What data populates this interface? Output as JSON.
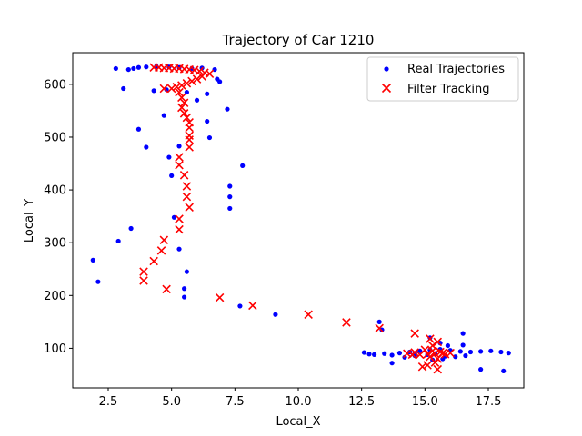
{
  "chart_data": {
    "type": "scatter",
    "title": "Trajectory of Car 1210",
    "xlabel": "Local_X",
    "ylabel": "Local_Y",
    "xlim": [
      1.1,
      18.9
    ],
    "ylim": [
      25,
      660
    ],
    "xticks": [
      2.5,
      5.0,
      7.5,
      10.0,
      12.5,
      15.0,
      17.5
    ],
    "xtick_labels": [
      "2.5",
      "5.0",
      "7.5",
      "10.0",
      "12.5",
      "15.0",
      "17.5"
    ],
    "yticks": [
      100,
      200,
      300,
      400,
      500,
      600
    ],
    "ytick_labels": [
      "100",
      "200",
      "300",
      "400",
      "500",
      "600"
    ],
    "grid": false,
    "legend_position": "top-right",
    "series": [
      {
        "name": "Real Trajectories",
        "marker": "dot",
        "color": "#0000ff",
        "points": [
          [
            2.8,
            630
          ],
          [
            3.3,
            628
          ],
          [
            3.5,
            630
          ],
          [
            3.7,
            632
          ],
          [
            4.0,
            633
          ],
          [
            4.4,
            634
          ],
          [
            4.9,
            633
          ],
          [
            5.3,
            632
          ],
          [
            5.8,
            630
          ],
          [
            6.2,
            631
          ],
          [
            6.7,
            628
          ],
          [
            3.1,
            592
          ],
          [
            4.3,
            588
          ],
          [
            4.8,
            590
          ],
          [
            5.6,
            585
          ],
          [
            6.4,
            582
          ],
          [
            6.8,
            610
          ],
          [
            6.9,
            605
          ],
          [
            6.0,
            570
          ],
          [
            7.2,
            553
          ],
          [
            3.7,
            515
          ],
          [
            6.4,
            530
          ],
          [
            4.7,
            541
          ],
          [
            6.5,
            499
          ],
          [
            4.0,
            481
          ],
          [
            5.3,
            483
          ],
          [
            4.9,
            462
          ],
          [
            7.8,
            446
          ],
          [
            5.0,
            427
          ],
          [
            7.3,
            407
          ],
          [
            7.3,
            387
          ],
          [
            7.3,
            365
          ],
          [
            3.4,
            327
          ],
          [
            5.1,
            348
          ],
          [
            2.9,
            303
          ],
          [
            5.3,
            288
          ],
          [
            1.9,
            267
          ],
          [
            5.6,
            245
          ],
          [
            2.1,
            226
          ],
          [
            5.5,
            213
          ],
          [
            5.5,
            197
          ],
          [
            7.7,
            180
          ],
          [
            9.1,
            164
          ],
          [
            13.2,
            150
          ],
          [
            13.3,
            135
          ],
          [
            16.5,
            128
          ],
          [
            12.6,
            92
          ],
          [
            12.8,
            89
          ],
          [
            13.0,
            88
          ],
          [
            13.4,
            90
          ],
          [
            13.7,
            87
          ],
          [
            14.0,
            91
          ],
          [
            14.4,
            93
          ],
          [
            14.8,
            95
          ],
          [
            15.2,
            97
          ],
          [
            15.6,
            98
          ],
          [
            16.0,
            96
          ],
          [
            16.4,
            94
          ],
          [
            16.8,
            93
          ],
          [
            17.2,
            94
          ],
          [
            17.6,
            95
          ],
          [
            18.0,
            93
          ],
          [
            18.3,
            91
          ],
          [
            14.2,
            83
          ],
          [
            14.6,
            86
          ],
          [
            15.1,
            88
          ],
          [
            15.4,
            90
          ],
          [
            15.8,
            85
          ],
          [
            16.2,
            84
          ],
          [
            16.6,
            86
          ],
          [
            15.2,
            120
          ],
          [
            15.6,
            110
          ],
          [
            15.9,
            105
          ],
          [
            13.7,
            72
          ],
          [
            15.3,
            78
          ],
          [
            15.7,
            80
          ],
          [
            17.2,
            60
          ],
          [
            18.1,
            57
          ],
          [
            16.5,
            106
          ],
          [
            14.6,
            90
          ]
        ]
      },
      {
        "name": "Filter Tracking",
        "marker": "x",
        "color": "#ff0000",
        "points": [
          [
            4.3,
            632
          ],
          [
            4.5,
            632
          ],
          [
            4.7,
            631
          ],
          [
            4.9,
            631
          ],
          [
            5.1,
            630
          ],
          [
            5.3,
            630
          ],
          [
            5.5,
            629
          ],
          [
            5.7,
            628
          ],
          [
            5.9,
            627
          ],
          [
            6.1,
            625
          ],
          [
            6.3,
            622
          ],
          [
            6.5,
            620
          ],
          [
            6.2,
            615
          ],
          [
            6.0,
            610
          ],
          [
            5.8,
            606
          ],
          [
            5.6,
            602
          ],
          [
            5.4,
            598
          ],
          [
            5.2,
            595
          ],
          [
            5.0,
            592
          ],
          [
            4.7,
            592
          ],
          [
            5.3,
            585
          ],
          [
            5.4,
            575
          ],
          [
            5.5,
            565
          ],
          [
            5.4,
            556
          ],
          [
            5.5,
            545
          ],
          [
            5.6,
            537
          ],
          [
            5.7,
            528
          ],
          [
            5.7,
            518
          ],
          [
            5.7,
            503
          ],
          [
            5.7,
            495
          ],
          [
            5.7,
            481
          ],
          [
            5.3,
            462
          ],
          [
            5.3,
            447
          ],
          [
            5.5,
            428
          ],
          [
            5.6,
            407
          ],
          [
            5.6,
            387
          ],
          [
            5.7,
            367
          ],
          [
            5.3,
            345
          ],
          [
            5.3,
            325
          ],
          [
            4.7,
            305
          ],
          [
            4.6,
            285
          ],
          [
            4.3,
            265
          ],
          [
            3.9,
            245
          ],
          [
            3.9,
            228
          ],
          [
            4.8,
            212
          ],
          [
            6.9,
            196
          ],
          [
            8.2,
            181
          ],
          [
            10.4,
            164
          ],
          [
            11.9,
            149
          ],
          [
            13.2,
            138
          ],
          [
            14.6,
            128
          ],
          [
            15.2,
            118
          ],
          [
            15.5,
            112
          ],
          [
            15.3,
            105
          ],
          [
            15.0,
            97
          ],
          [
            14.6,
            92
          ],
          [
            14.3,
            90
          ],
          [
            14.5,
            88
          ],
          [
            14.8,
            88
          ],
          [
            15.1,
            89
          ],
          [
            15.4,
            90
          ],
          [
            15.7,
            91
          ],
          [
            16.0,
            91
          ],
          [
            15.3,
            95
          ],
          [
            15.6,
            93
          ],
          [
            15.8,
            89
          ],
          [
            15.2,
            84
          ],
          [
            15.5,
            80
          ],
          [
            15.4,
            73
          ],
          [
            15.1,
            68
          ],
          [
            14.9,
            65
          ],
          [
            15.5,
            60
          ]
        ]
      }
    ]
  }
}
